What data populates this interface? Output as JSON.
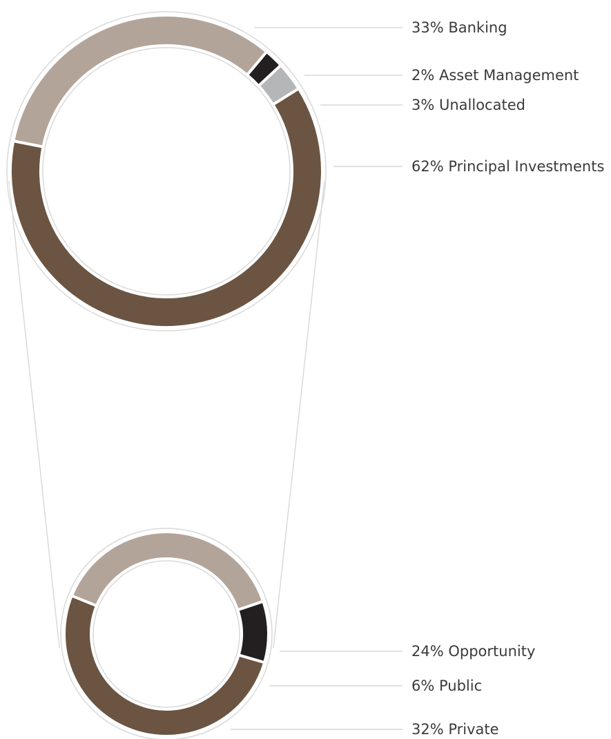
{
  "colors": {
    "banking": "#b3a499",
    "asset_management": "#231f20",
    "unallocated": "#b5b6b8",
    "principal": "#6b5442",
    "opportunity": "#b3a499",
    "public": "#231f20",
    "private": "#6b5442",
    "outline": "#d9d9d9",
    "leader": "#d0d0d0",
    "separator": "#ffffff"
  },
  "chart_data": [
    {
      "type": "pie",
      "style": "donut",
      "slices": [
        {
          "label": "33% Banking",
          "value": 33,
          "color_key": "banking"
        },
        {
          "label": "2% Asset Management",
          "value": 2,
          "color_key": "asset_management"
        },
        {
          "label": "3% Unallocated",
          "value": 3,
          "color_key": "unallocated"
        },
        {
          "label": "62% Principal Investments",
          "value": 62,
          "color_key": "principal"
        }
      ]
    },
    {
      "type": "pie",
      "style": "donut",
      "breakdown_of": "62% Principal Investments",
      "slices": [
        {
          "label": "24% Opportunity",
          "value": 24,
          "color_key": "opportunity"
        },
        {
          "label": "6% Public",
          "value": 6,
          "color_key": "public"
        },
        {
          "label": "32% Private",
          "value": 32,
          "color_key": "private"
        }
      ]
    }
  ]
}
